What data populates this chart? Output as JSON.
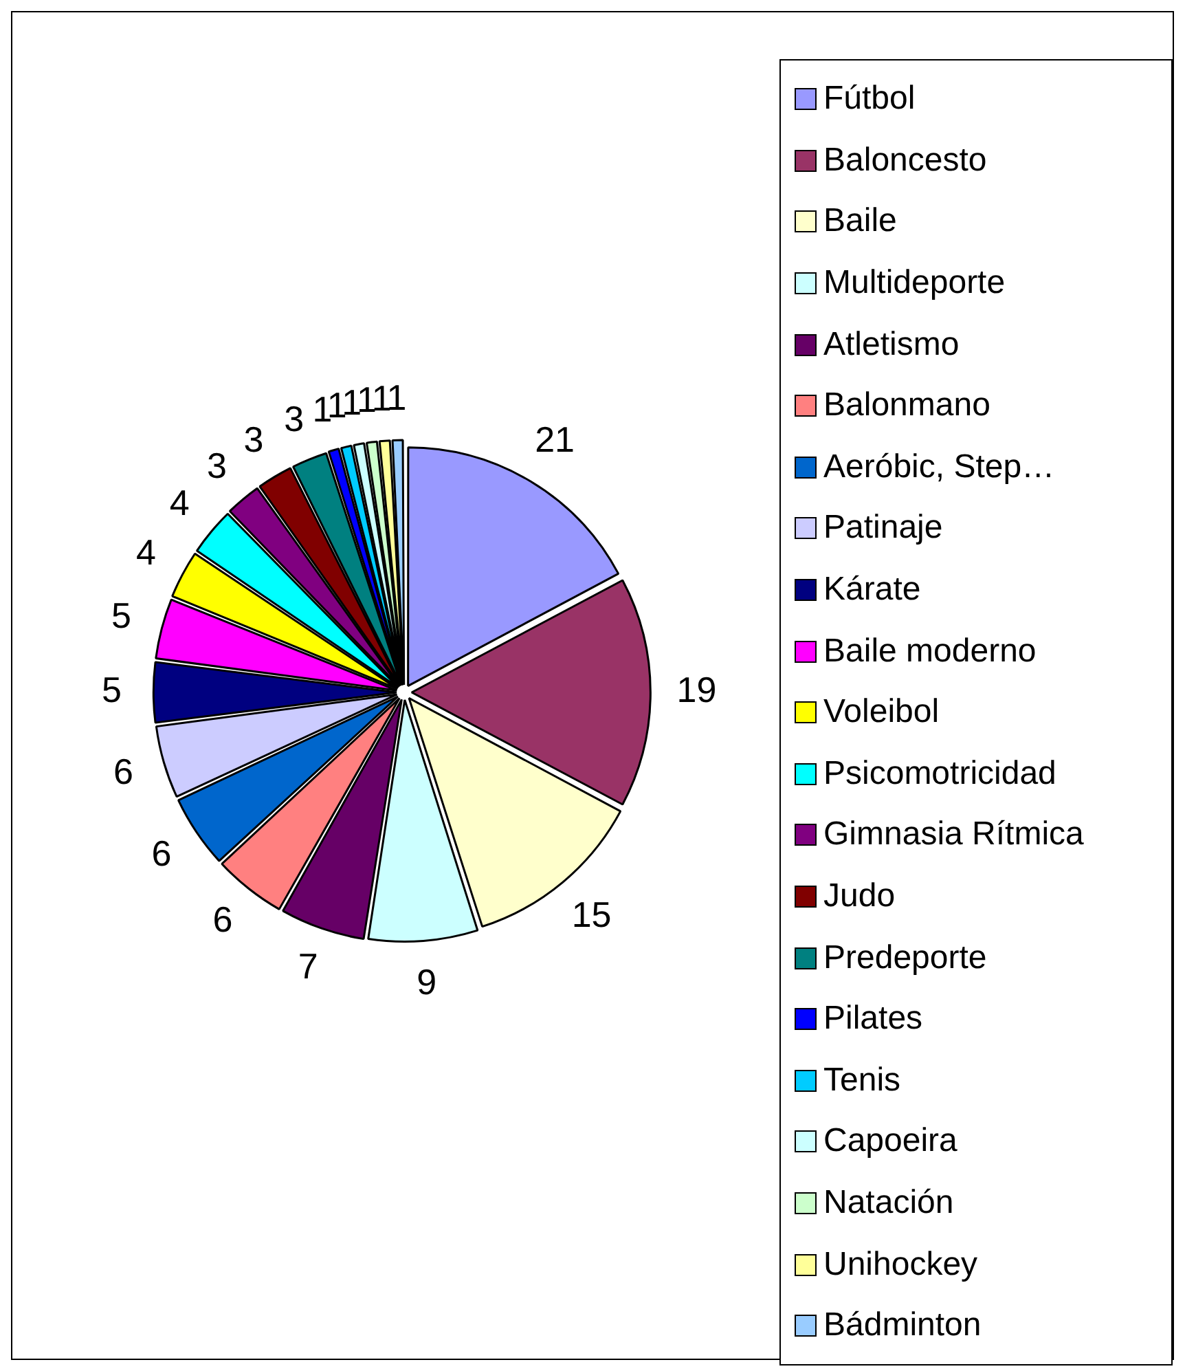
{
  "chart_data": {
    "type": "pie",
    "categories": [
      "Fútbol",
      "Baloncesto",
      "Baile",
      "Multideporte",
      "Atletismo",
      "Balonmano",
      "Aeróbic, Step…",
      "Patinaje",
      "Kárate",
      "Baile moderno",
      "Voleibol",
      "Psicomotricidad",
      "Gimnasia Rítmica",
      "Judo",
      "Predeporte",
      "Pilates",
      "Tenis",
      "Capoeira",
      "Natación",
      "Unihockey",
      "Bádminton"
    ],
    "values": [
      21,
      19,
      15,
      9,
      7,
      6,
      6,
      6,
      5,
      5,
      4,
      4,
      3,
      3,
      3,
      1,
      1,
      1,
      1,
      1,
      1
    ],
    "colors": [
      "#9999ff",
      "#993366",
      "#ffffcc",
      "#ccffff",
      "#660066",
      "#ff8080",
      "#0066cc",
      "#ccccff",
      "#000080",
      "#ff00ff",
      "#ffff00",
      "#00ffff",
      "#800080",
      "#800000",
      "#008080",
      "#0000ff",
      "#00ccff",
      "#ccffff",
      "#ccffcc",
      "#ffff99",
      "#99ccff"
    ],
    "data_labels": true,
    "legend": "right"
  }
}
